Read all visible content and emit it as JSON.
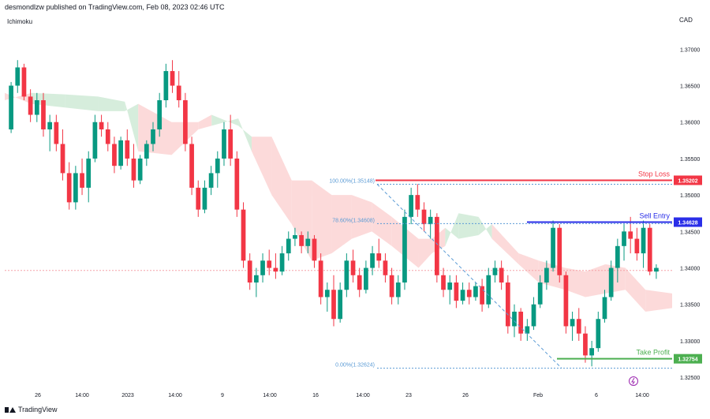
{
  "header": {
    "published": "desmondlzw published on TradingView.com, Feb 08, 2023 02:46 UTC",
    "indicator": "Ichimoku",
    "currency": "CAD"
  },
  "footer": {
    "brand": "TradingView"
  },
  "chart_data": {
    "type": "candlestick",
    "y_ticks": [
      1.37,
      1.365,
      1.36,
      1.355,
      1.35,
      1.345,
      1.34,
      1.335,
      1.33,
      1.325
    ],
    "y_tick_labels": [
      "1.37000",
      "1.36500",
      "1.36000",
      "1.35500",
      "1.35000",
      "1.34500",
      "1.34000",
      "1.33500",
      "1.33000",
      "1.32500"
    ],
    "ylim": [
      1.3235,
      1.3735
    ],
    "x_ticks": [
      "26",
      "14:00",
      "2023",
      "14:00",
      "9",
      "14:00",
      "16",
      "14:00",
      "23",
      "26",
      "Feb",
      "6",
      "14:00"
    ],
    "levels": [
      {
        "name": "Stop Loss",
        "label": "1.35202",
        "value": 1.35202,
        "color": "#f23645"
      },
      {
        "name": "Sell Entry",
        "label": "1.34628",
        "value": 1.34628,
        "color": "#2a2ee8"
      },
      {
        "name": "Take Profit",
        "label": "1.32754",
        "value": 1.32754,
        "color": "#4caf50"
      }
    ],
    "fib_levels": [
      {
        "label": "100.00%(1.35148)",
        "value": 1.35148
      },
      {
        "label": "78.60%(1.34608)",
        "value": 1.34608
      },
      {
        "label": "0.00%(1.32624)",
        "value": 1.32624
      }
    ],
    "current_price": 1.33965,
    "candles": [
      [
        1.359,
        1.3655,
        1.3585,
        1.365
      ],
      [
        1.365,
        1.3685,
        1.364,
        1.3675
      ],
      [
        1.3675,
        1.368,
        1.363,
        1.3635
      ],
      [
        1.3635,
        1.3645,
        1.36,
        1.361
      ],
      [
        1.361,
        1.364,
        1.36,
        1.363
      ],
      [
        1.363,
        1.364,
        1.358,
        1.359
      ],
      [
        1.359,
        1.361,
        1.356,
        1.36
      ],
      [
        1.36,
        1.361,
        1.356,
        1.357
      ],
      [
        1.357,
        1.359,
        1.352,
        1.353
      ],
      [
        1.353,
        1.3545,
        1.348,
        1.349
      ],
      [
        1.349,
        1.354,
        1.348,
        1.353
      ],
      [
        1.353,
        1.355,
        1.35,
        1.351
      ],
      [
        1.351,
        1.356,
        1.349,
        1.355
      ],
      [
        1.355,
        1.361,
        1.3545,
        1.36
      ],
      [
        1.36,
        1.361,
        1.358,
        1.359
      ],
      [
        1.359,
        1.36,
        1.356,
        1.357
      ],
      [
        1.357,
        1.358,
        1.353,
        1.354
      ],
      [
        1.354,
        1.358,
        1.3535,
        1.3575
      ],
      [
        1.3575,
        1.359,
        1.354,
        1.355
      ],
      [
        1.355,
        1.357,
        1.351,
        1.352
      ],
      [
        1.352,
        1.3555,
        1.3515,
        1.355
      ],
      [
        1.355,
        1.3575,
        1.354,
        1.357
      ],
      [
        1.357,
        1.36,
        1.356,
        1.359
      ],
      [
        1.359,
        1.364,
        1.358,
        1.363
      ],
      [
        1.363,
        1.368,
        1.362,
        1.367
      ],
      [
        1.367,
        1.3685,
        1.364,
        1.365
      ],
      [
        1.365,
        1.367,
        1.362,
        1.363
      ],
      [
        1.363,
        1.364,
        1.356,
        1.357
      ],
      [
        1.357,
        1.358,
        1.35,
        1.351
      ],
      [
        1.351,
        1.352,
        1.347,
        1.348
      ],
      [
        1.348,
        1.352,
        1.3475,
        1.351
      ],
      [
        1.351,
        1.354,
        1.35,
        1.353
      ],
      [
        1.353,
        1.356,
        1.351,
        1.355
      ],
      [
        1.355,
        1.36,
        1.354,
        1.359
      ],
      [
        1.359,
        1.361,
        1.354,
        1.355
      ],
      [
        1.355,
        1.356,
        1.347,
        1.348
      ],
      [
        1.348,
        1.349,
        1.34,
        1.341
      ],
      [
        1.341,
        1.342,
        1.337,
        1.338
      ],
      [
        1.338,
        1.34,
        1.336,
        1.339
      ],
      [
        1.339,
        1.342,
        1.338,
        1.341
      ],
      [
        1.341,
        1.3425,
        1.339,
        1.34
      ],
      [
        1.34,
        1.342,
        1.3385,
        1.3395
      ],
      [
        1.3395,
        1.343,
        1.339,
        1.342
      ],
      [
        1.342,
        1.345,
        1.341,
        1.344
      ],
      [
        1.344,
        1.3455,
        1.343,
        1.3445
      ],
      [
        1.3445,
        1.345,
        1.342,
        1.343
      ],
      [
        1.343,
        1.345,
        1.342,
        1.344
      ],
      [
        1.344,
        1.3445,
        1.34,
        1.341
      ],
      [
        1.341,
        1.342,
        1.335,
        1.336
      ],
      [
        1.336,
        1.338,
        1.334,
        1.337
      ],
      [
        1.337,
        1.339,
        1.332,
        1.333
      ],
      [
        1.333,
        1.338,
        1.3325,
        1.337
      ],
      [
        1.337,
        1.342,
        1.336,
        1.341
      ],
      [
        1.341,
        1.3425,
        1.338,
        1.339
      ],
      [
        1.339,
        1.34,
        1.336,
        1.337
      ],
      [
        1.337,
        1.341,
        1.3365,
        1.34
      ],
      [
        1.34,
        1.343,
        1.339,
        1.342
      ],
      [
        1.342,
        1.344,
        1.34,
        1.341
      ],
      [
        1.341,
        1.342,
        1.338,
        1.339
      ],
      [
        1.339,
        1.34,
        1.335,
        1.336
      ],
      [
        1.336,
        1.339,
        1.335,
        1.338
      ],
      [
        1.338,
        1.348,
        1.337,
        1.347
      ],
      [
        1.347,
        1.351,
        1.346,
        1.35
      ],
      [
        1.35,
        1.3515,
        1.347,
        1.348
      ],
      [
        1.348,
        1.349,
        1.345,
        1.346
      ],
      [
        1.346,
        1.348,
        1.344,
        1.347
      ],
      [
        1.347,
        1.3475,
        1.338,
        1.339
      ],
      [
        1.339,
        1.34,
        1.336,
        1.337
      ],
      [
        1.337,
        1.339,
        1.335,
        1.338
      ],
      [
        1.338,
        1.339,
        1.3345,
        1.3355
      ],
      [
        1.3355,
        1.338,
        1.335,
        1.337
      ],
      [
        1.337,
        1.338,
        1.335,
        1.336
      ],
      [
        1.336,
        1.338,
        1.3355,
        1.3375
      ],
      [
        1.3375,
        1.3385,
        1.334,
        1.335
      ],
      [
        1.335,
        1.34,
        1.3345,
        1.339
      ],
      [
        1.339,
        1.341,
        1.338,
        1.34
      ],
      [
        1.34,
        1.341,
        1.337,
        1.338
      ],
      [
        1.338,
        1.339,
        1.331,
        1.332
      ],
      [
        1.332,
        1.335,
        1.3305,
        1.334
      ],
      [
        1.334,
        1.3345,
        1.33,
        1.331
      ],
      [
        1.331,
        1.333,
        1.33,
        1.332
      ],
      [
        1.332,
        1.336,
        1.3315,
        1.335
      ],
      [
        1.335,
        1.339,
        1.3345,
        1.338
      ],
      [
        1.338,
        1.341,
        1.337,
        1.34
      ],
      [
        1.34,
        1.3465,
        1.3395,
        1.3455
      ],
      [
        1.3455,
        1.346,
        1.338,
        1.339
      ],
      [
        1.339,
        1.3395,
        1.331,
        1.332
      ],
      [
        1.332,
        1.334,
        1.33,
        1.333
      ],
      [
        1.333,
        1.3345,
        1.33,
        1.331
      ],
      [
        1.331,
        1.332,
        1.327,
        1.328
      ],
      [
        1.328,
        1.33,
        1.3265,
        1.329
      ],
      [
        1.329,
        1.334,
        1.3285,
        1.333
      ],
      [
        1.333,
        1.337,
        1.3325,
        1.336
      ],
      [
        1.336,
        1.341,
        1.3355,
        1.34
      ],
      [
        1.34,
        1.344,
        1.338,
        1.343
      ],
      [
        1.343,
        1.346,
        1.341,
        1.345
      ],
      [
        1.345,
        1.347,
        1.342,
        1.344
      ],
      [
        1.344,
        1.3455,
        1.341,
        1.342
      ],
      [
        1.342,
        1.3465,
        1.34,
        1.3455
      ],
      [
        1.3455,
        1.346,
        1.339,
        1.3395
      ],
      [
        1.3395,
        1.3405,
        1.3385,
        1.34
      ]
    ],
    "cloud": [
      {
        "x": 0.0,
        "a": 1.364,
        "b": 1.363,
        "bull": false
      },
      {
        "x": 0.04,
        "a": 1.3625,
        "b": 1.364,
        "bull": true
      },
      {
        "x": 0.09,
        "a": 1.362,
        "b": 1.3638,
        "bull": true
      },
      {
        "x": 0.14,
        "a": 1.3615,
        "b": 1.3635,
        "bull": true
      },
      {
        "x": 0.18,
        "a": 1.3615,
        "b": 1.3628,
        "bull": true
      },
      {
        "x": 0.2,
        "a": 1.3625,
        "b": 1.356,
        "bull": false
      },
      {
        "x": 0.25,
        "a": 1.36,
        "b": 1.3555,
        "bull": false
      },
      {
        "x": 0.29,
        "a": 1.36,
        "b": 1.359,
        "bull": false
      },
      {
        "x": 0.31,
        "a": 1.361,
        "b": 1.3595,
        "bull": true
      },
      {
        "x": 0.35,
        "a": 1.3595,
        "b": 1.3605,
        "bull": true
      },
      {
        "x": 0.37,
        "a": 1.358,
        "b": 1.356,
        "bull": false
      },
      {
        "x": 0.4,
        "a": 1.358,
        "b": 1.35,
        "bull": false
      },
      {
        "x": 0.43,
        "a": 1.352,
        "b": 1.346,
        "bull": false
      },
      {
        "x": 0.46,
        "a": 1.352,
        "b": 1.341,
        "bull": false
      },
      {
        "x": 0.49,
        "a": 1.35,
        "b": 1.342,
        "bull": false
      },
      {
        "x": 0.52,
        "a": 1.35,
        "b": 1.344,
        "bull": false
      },
      {
        "x": 0.55,
        "a": 1.349,
        "b": 1.345,
        "bull": false
      },
      {
        "x": 0.58,
        "a": 1.347,
        "b": 1.343,
        "bull": false
      },
      {
        "x": 0.62,
        "a": 1.344,
        "b": 1.34,
        "bull": false
      },
      {
        "x": 0.64,
        "a": 1.344,
        "b": 1.342,
        "bull": false
      },
      {
        "x": 0.66,
        "a": 1.3455,
        "b": 1.343,
        "bull": true
      },
      {
        "x": 0.68,
        "a": 1.344,
        "b": 1.3475,
        "bull": true
      },
      {
        "x": 0.71,
        "a": 1.3445,
        "b": 1.347,
        "bull": true
      },
      {
        "x": 0.73,
        "a": 1.346,
        "b": 1.344,
        "bull": false
      },
      {
        "x": 0.77,
        "a": 1.342,
        "b": 1.3405,
        "bull": false
      },
      {
        "x": 0.8,
        "a": 1.341,
        "b": 1.338,
        "bull": false
      },
      {
        "x": 0.84,
        "a": 1.34,
        "b": 1.337,
        "bull": false
      },
      {
        "x": 0.87,
        "a": 1.3395,
        "b": 1.336,
        "bull": false
      },
      {
        "x": 0.9,
        "a": 1.3405,
        "b": 1.3365,
        "bull": false
      },
      {
        "x": 0.93,
        "a": 1.34,
        "b": 1.337,
        "bull": false
      },
      {
        "x": 0.96,
        "a": 1.337,
        "b": 1.334,
        "bull": false
      },
      {
        "x": 1.0,
        "a": 1.3365,
        "b": 1.3345,
        "bull": false
      }
    ],
    "colors": {
      "up": "#089981",
      "down": "#f23645",
      "cloud_bear": "#fbd3d3",
      "cloud_bull": "#cfead6",
      "fib": "#5b9bd5"
    }
  }
}
